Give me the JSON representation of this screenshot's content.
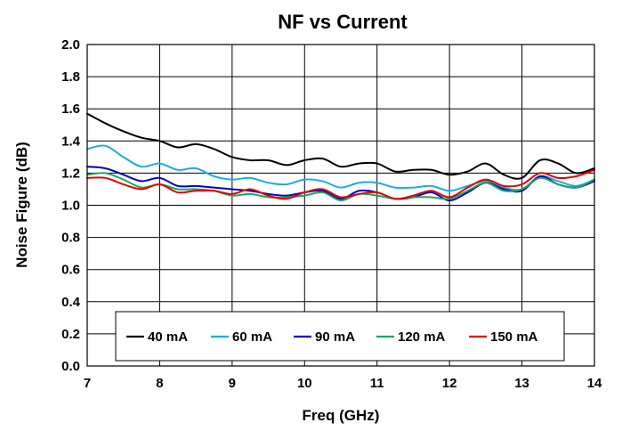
{
  "chart_data": {
    "type": "line",
    "title": "NF vs Current",
    "xlabel": "Freq (GHz)",
    "ylabel": "Noise Figure (dB)",
    "xlim": [
      7,
      14
    ],
    "ylim": [
      0,
      2
    ],
    "xticks": [
      "7",
      "8",
      "9",
      "10",
      "11",
      "12",
      "13",
      "14"
    ],
    "yticks": [
      "0.0",
      "0.2",
      "0.4",
      "0.6",
      "0.8",
      "1.0",
      "1.2",
      "1.4",
      "1.6",
      "1.8",
      "2.0"
    ],
    "grid": true,
    "legend_position": "bottom-center",
    "x": [
      7.0,
      7.25,
      7.5,
      7.75,
      8.0,
      8.25,
      8.5,
      8.75,
      9.0,
      9.25,
      9.5,
      9.75,
      10.0,
      10.25,
      10.5,
      10.75,
      11.0,
      11.25,
      11.5,
      11.75,
      12.0,
      12.25,
      12.5,
      12.75,
      13.0,
      13.25,
      13.5,
      13.75,
      14.0
    ],
    "series": [
      {
        "name": "40 mA",
        "color": "#000000",
        "values": [
          1.57,
          1.51,
          1.46,
          1.42,
          1.4,
          1.36,
          1.38,
          1.35,
          1.3,
          1.28,
          1.28,
          1.25,
          1.28,
          1.29,
          1.24,
          1.26,
          1.26,
          1.21,
          1.22,
          1.22,
          1.19,
          1.21,
          1.26,
          1.19,
          1.17,
          1.28,
          1.26,
          1.2,
          1.23
        ]
      },
      {
        "name": "60 mA",
        "color": "#1CACE3",
        "values": [
          1.35,
          1.37,
          1.3,
          1.24,
          1.26,
          1.22,
          1.23,
          1.18,
          1.16,
          1.17,
          1.14,
          1.13,
          1.16,
          1.15,
          1.11,
          1.14,
          1.14,
          1.11,
          1.11,
          1.12,
          1.09,
          1.12,
          1.15,
          1.11,
          1.1,
          1.18,
          1.15,
          1.12,
          1.16
        ]
      },
      {
        "name": "90 mA",
        "color": "#0000CC",
        "values": [
          1.24,
          1.23,
          1.19,
          1.15,
          1.17,
          1.12,
          1.12,
          1.11,
          1.1,
          1.09,
          1.07,
          1.06,
          1.08,
          1.09,
          1.04,
          1.09,
          1.08,
          1.04,
          1.05,
          1.08,
          1.03,
          1.08,
          1.14,
          1.1,
          1.09,
          1.18,
          1.13,
          1.11,
          1.15
        ]
      },
      {
        "name": "120 mA",
        "color": "#1DA85A",
        "values": [
          1.19,
          1.2,
          1.16,
          1.11,
          1.13,
          1.1,
          1.1,
          1.09,
          1.06,
          1.07,
          1.05,
          1.05,
          1.06,
          1.08,
          1.03,
          1.07,
          1.06,
          1.04,
          1.05,
          1.05,
          1.04,
          1.09,
          1.14,
          1.09,
          1.1,
          1.17,
          1.13,
          1.11,
          1.16
        ]
      },
      {
        "name": "150 mA",
        "color": "#E60000",
        "values": [
          1.17,
          1.17,
          1.13,
          1.1,
          1.13,
          1.08,
          1.09,
          1.09,
          1.07,
          1.1,
          1.06,
          1.04,
          1.08,
          1.1,
          1.05,
          1.07,
          1.08,
          1.04,
          1.06,
          1.09,
          1.05,
          1.11,
          1.16,
          1.12,
          1.13,
          1.2,
          1.17,
          1.18,
          1.22
        ]
      }
    ]
  }
}
